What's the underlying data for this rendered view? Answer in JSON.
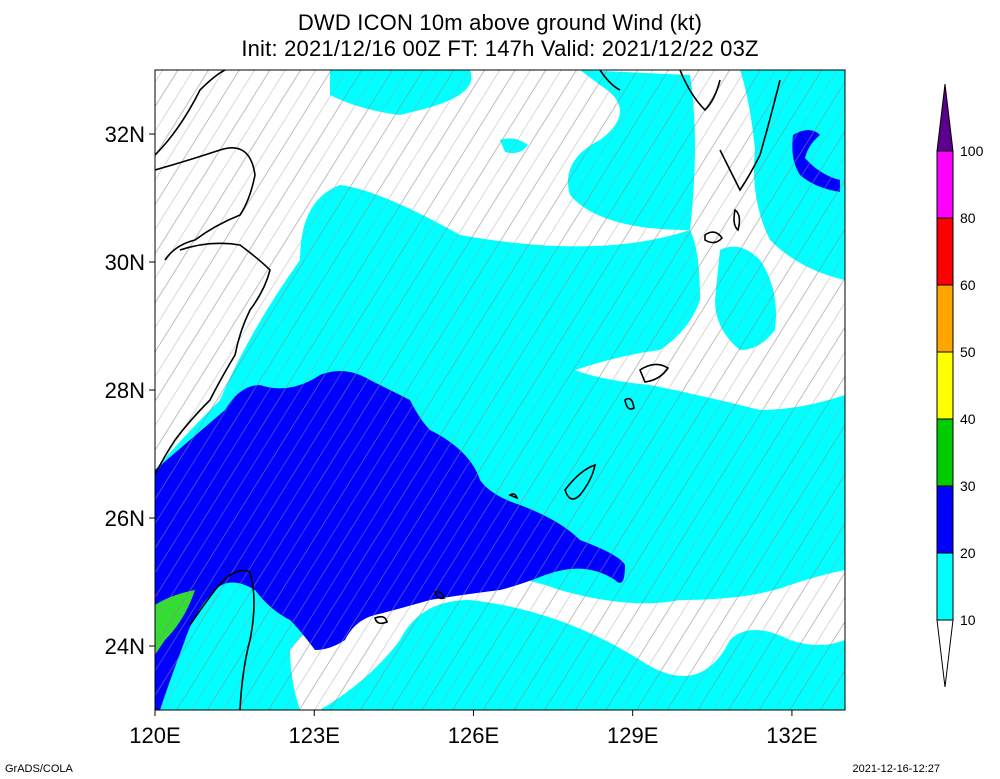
{
  "header": {
    "title": "DWD ICON 10m above ground Wind (kt)",
    "subtitle": "Init: 2021/12/16 00Z  FT: 147h  Valid: 2021/12/22 03Z"
  },
  "map": {
    "lat_labels": [
      "32N",
      "30N",
      "28N",
      "26N",
      "24N"
    ],
    "lon_labels": [
      "120E",
      "123E",
      "126E",
      "129E",
      "132E"
    ],
    "lat_range": [
      23,
      33
    ],
    "lon_range": [
      120,
      133
    ]
  },
  "colorbar": {
    "levels": [
      "10",
      "20",
      "30",
      "40",
      "50",
      "60",
      "80",
      "100"
    ],
    "colors": [
      "#00ffff",
      "#0000ff",
      "#00cc00",
      "#ffff00",
      "#ffa500",
      "#ff0000",
      "#ff00ff",
      "#5a008c"
    ]
  },
  "footer": {
    "left": "GrADS/COLA",
    "right": "2021-12-16-12:27"
  }
}
